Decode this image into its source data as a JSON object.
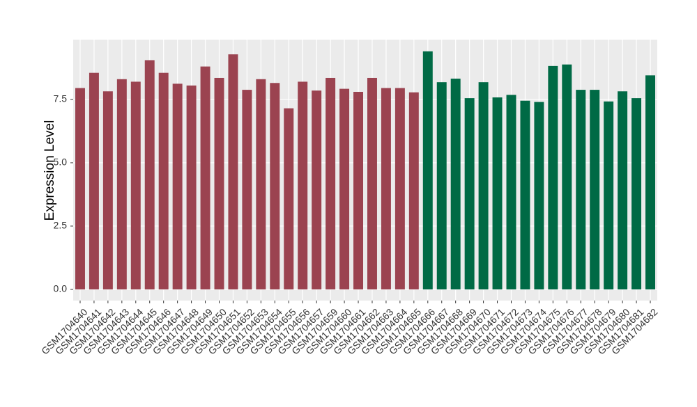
{
  "chart_data": {
    "type": "bar",
    "y_label": "Expression Level",
    "categories": [
      "GSM1704640",
      "GSM1704641",
      "GSM1704642",
      "GSM1704643",
      "GSM1704644",
      "GSM1704645",
      "GSM1704646",
      "GSM1704647",
      "GSM1704648",
      "GSM1704649",
      "GSM1704650",
      "GSM1704651",
      "GSM1704652",
      "GSM1704653",
      "GSM1704654",
      "GSM1704655",
      "GSM1704656",
      "GSM1704657",
      "GSM1704659",
      "GSM1704660",
      "GSM1704661",
      "GSM1704662",
      "GSM1704663",
      "GSM1704664",
      "GSM1704665",
      "GSM1704666",
      "GSM1704667",
      "GSM1704668",
      "GSM1704669",
      "GSM1704670",
      "GSM1704671",
      "GSM1704672",
      "GSM1704673",
      "GSM1704674",
      "GSM1704675",
      "GSM1704676",
      "GSM1704677",
      "GSM1704678",
      "GSM1704679",
      "GSM1704680",
      "GSM1704681",
      "GSM1704682"
    ],
    "values": [
      7.95,
      8.55,
      7.82,
      8.3,
      8.2,
      9.05,
      8.55,
      8.12,
      8.05,
      8.8,
      8.35,
      9.28,
      7.88,
      8.3,
      8.15,
      7.15,
      8.2,
      7.85,
      8.35,
      7.92,
      7.8,
      8.35,
      7.95,
      7.95,
      7.78,
      9.4,
      8.18,
      8.32,
      7.55,
      8.18,
      7.58,
      7.68,
      7.45,
      7.4,
      8.82,
      8.88,
      7.88,
      7.88,
      7.42,
      7.82,
      7.55,
      8.45
    ],
    "colors": [
      "#9b4350",
      "#9b4350",
      "#9b4350",
      "#9b4350",
      "#9b4350",
      "#9b4350",
      "#9b4350",
      "#9b4350",
      "#9b4350",
      "#9b4350",
      "#9b4350",
      "#9b4350",
      "#9b4350",
      "#9b4350",
      "#9b4350",
      "#9b4350",
      "#9b4350",
      "#9b4350",
      "#9b4350",
      "#9b4350",
      "#9b4350",
      "#9b4350",
      "#9b4350",
      "#9b4350",
      "#9b4350",
      "#006a45",
      "#006a45",
      "#006a45",
      "#006a45",
      "#006a45",
      "#006a45",
      "#006a45",
      "#006a45",
      "#006a45",
      "#006a45",
      "#006a45",
      "#006a45",
      "#006a45",
      "#006a45",
      "#006a45",
      "#006a45",
      "#006a45"
    ],
    "ylim": [
      -0.44,
      9.86
    ],
    "yticks": [
      {
        "value": 0,
        "label": "0.0"
      },
      2.5,
      {
        "value": 5,
        "label": "5.0"
      },
      7.5
    ],
    "grid": true
  }
}
